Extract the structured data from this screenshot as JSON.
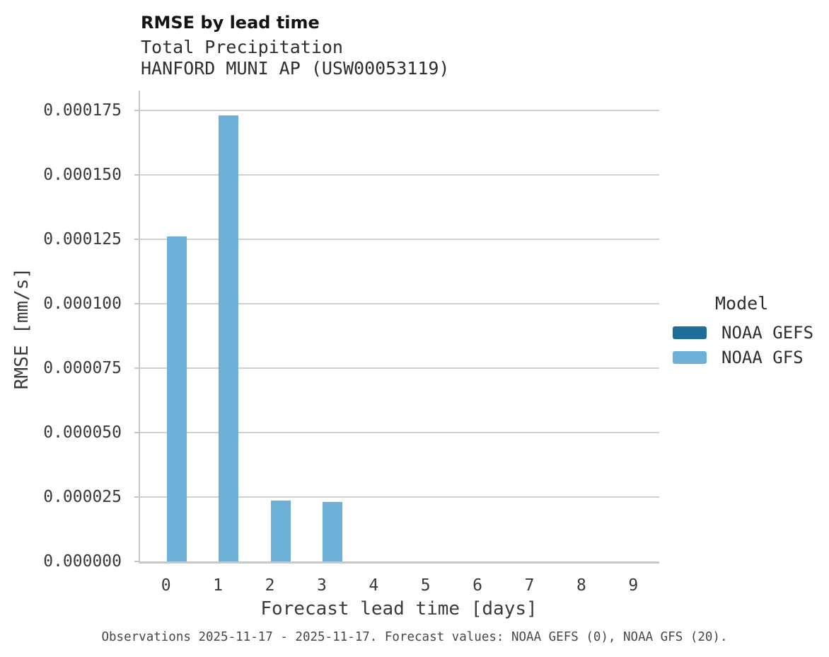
{
  "header": {
    "title": "RMSE by lead time",
    "subtitle": "Total Precipitation",
    "station": "HANFORD MUNI AP (USW00053119)"
  },
  "chart_data": {
    "type": "bar",
    "title": "RMSE by lead time",
    "subtitle": "Total Precipitation",
    "station": "HANFORD MUNI AP (USW00053119)",
    "xlabel": "Forecast lead time [days]",
    "ylabel": "RMSE [mm/s]",
    "categories": [
      "0",
      "1",
      "2",
      "3",
      "4",
      "5",
      "6",
      "7",
      "8",
      "9"
    ],
    "series": [
      {
        "name": "NOAA GEFS",
        "color": "#1e6e9c",
        "values": [
          0,
          0,
          0,
          0,
          0,
          0,
          0,
          0,
          0,
          0
        ]
      },
      {
        "name": "NOAA GFS",
        "color": "#6db1d8",
        "values": [
          0.000126,
          0.000173,
          2.36e-05,
          2.31e-05,
          0,
          0,
          0,
          0,
          0,
          0
        ]
      }
    ],
    "ylim": [
      0,
      0.0001827
    ],
    "yticks": [
      0,
      2.5e-05,
      5e-05,
      7.5e-05,
      0.0001,
      0.000125,
      0.00015,
      0.000175
    ],
    "ytick_labels": [
      "0.000000",
      "0.000025",
      "0.000050",
      "0.000075",
      "0.000100",
      "0.000125",
      "0.000150",
      "0.000175"
    ],
    "grid": "horizontal",
    "legend_position": "right",
    "legend_title": "Model"
  },
  "legend": {
    "title": "Model",
    "entries": [
      {
        "label": "NOAA GEFS",
        "color": "#1e6e9c"
      },
      {
        "label": "NOAA GFS",
        "color": "#6db1d8"
      }
    ]
  },
  "footer": {
    "caption": "Observations 2025-11-17 - 2025-11-17. Forecast values: NOAA GEFS (0), NOAA GFS (20)."
  },
  "colors": {
    "gridline": "#d2d2d2",
    "spine": "#c7c7c7",
    "bar_noaa_gfs": "#6db1d8",
    "bar_noaa_gefs": "#1e6e9c",
    "title_text": "#141414",
    "axis_text": "#3a3a3a",
    "caption_text": "#474747"
  }
}
